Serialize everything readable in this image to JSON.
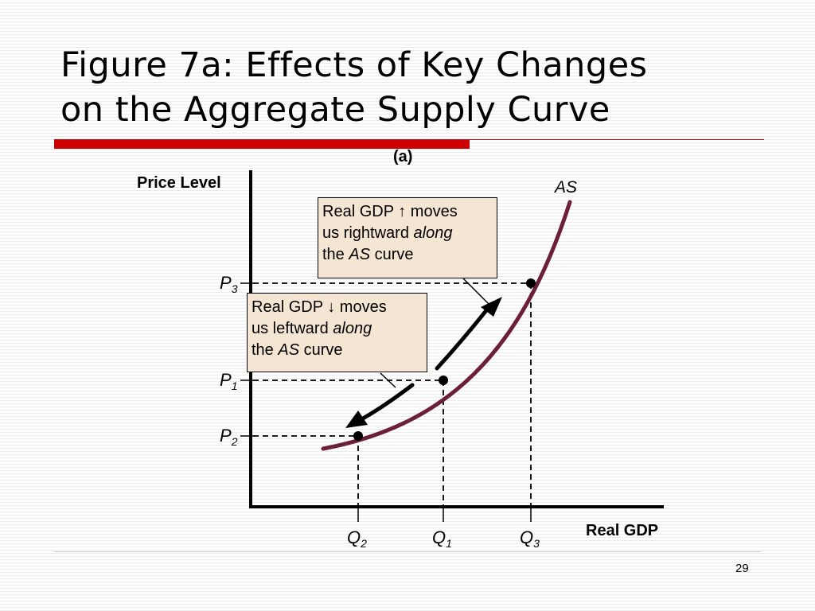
{
  "slide": {
    "title_line1": "Figure 7a:  Effects of Key Changes",
    "title_line2": "on the Aggregate Supply Curve",
    "page_number": "29",
    "accent_color": "#cc0000"
  },
  "diagram": {
    "panel_label": "(a)",
    "y_axis_label": "Price Level",
    "x_axis_label": "Real GDP",
    "curve_label": "AS",
    "curve_color": "#6b1f3a",
    "callout_up": {
      "line1": "Real GDP ↑ moves",
      "line2_a": "us rightward ",
      "line2_b": "along",
      "line3_a": "the ",
      "line3_b": "AS",
      "line3_c": " curve"
    },
    "callout_down": {
      "line1": "Real GDP ↓ moves",
      "line2_a": "us leftward ",
      "line2_b": "along",
      "line3_a": "the ",
      "line3_b": "AS",
      "line3_c": " curve"
    },
    "price_labels": [
      {
        "main": "P",
        "sub": "3"
      },
      {
        "main": "P",
        "sub": "1"
      },
      {
        "main": "P",
        "sub": "2"
      }
    ],
    "quantity_labels": [
      {
        "main": "Q",
        "sub": "2"
      },
      {
        "main": "Q",
        "sub": "1"
      },
      {
        "main": "Q",
        "sub": "3"
      }
    ],
    "callout_fill": "#f5e6d3"
  }
}
